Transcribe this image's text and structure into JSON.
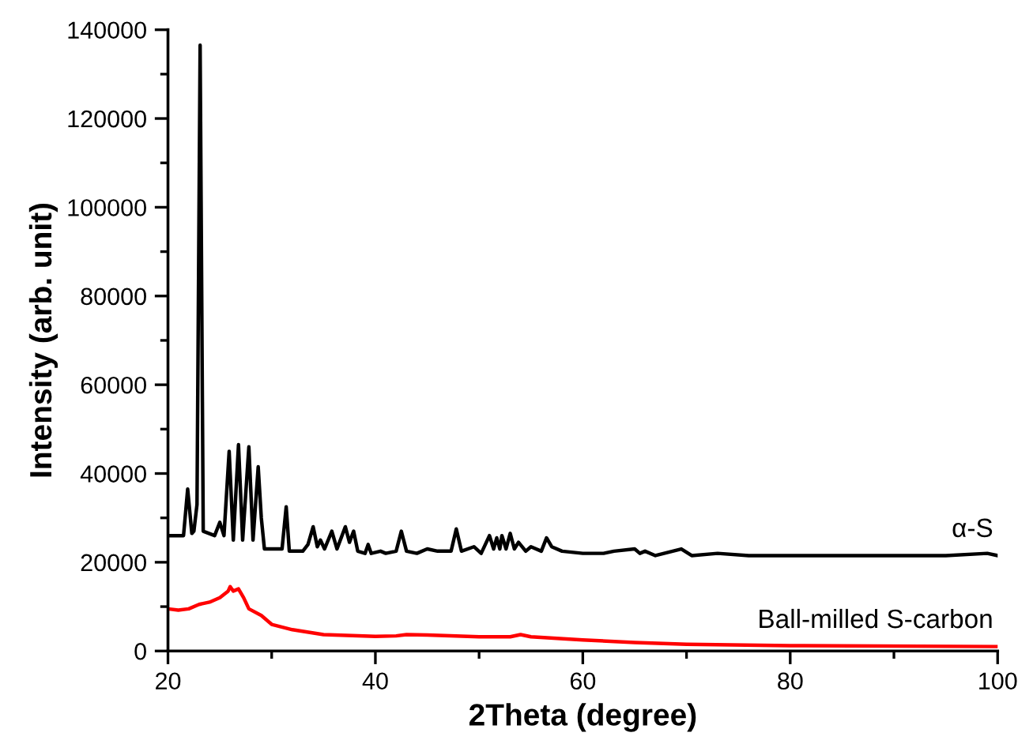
{
  "chart_data": {
    "type": "line",
    "xlabel": "2Theta (degree)",
    "ylabel": "Intensity (arb. unit)",
    "xlim": [
      20,
      100
    ],
    "xticks": [
      20,
      40,
      60,
      80,
      100
    ],
    "ylim": [
      0,
      140000
    ],
    "yticks": [
      0,
      20000,
      40000,
      60000,
      80000,
      100000,
      120000,
      140000
    ],
    "grid": false,
    "legend": false,
    "marker": "none",
    "line_style": "solid",
    "series": [
      {
        "name": "α-S",
        "color": "#000000",
        "x": [
          20,
          21.5,
          21.9,
          22.3,
          22.5,
          22.8,
          23.1,
          23.4,
          24.5,
          25,
          25.4,
          25.9,
          26.3,
          26.8,
          27.2,
          27.8,
          28.2,
          28.7,
          29.0,
          29.3,
          31.0,
          31.4,
          31.7,
          33,
          33.5,
          34.0,
          34.4,
          34.7,
          35.1,
          35.8,
          36.3,
          37.1,
          37.5,
          37.9,
          38.3,
          39.0,
          39.3,
          39.6,
          40.5,
          41,
          42,
          42.5,
          43,
          44,
          45,
          46,
          47.3,
          47.8,
          48.3,
          49.5,
          50.2,
          51,
          51.4,
          51.7,
          52,
          52.2,
          52.6,
          53,
          53.4,
          53.8,
          54.5,
          55,
          56,
          56.5,
          57,
          58,
          60,
          62,
          63,
          65,
          65.5,
          66,
          67,
          69.5,
          70.5,
          73,
          76,
          80,
          85,
          90,
          95,
          99,
          100
        ],
        "values": [
          26000,
          26000,
          36500,
          26500,
          27000,
          33000,
          136500,
          27000,
          26000,
          29000,
          26000,
          45000,
          25000,
          46500,
          25000,
          46000,
          25000,
          41500,
          30000,
          23000,
          23000,
          32500,
          22500,
          22500,
          24000,
          28000,
          23500,
          25000,
          23000,
          27000,
          23000,
          28000,
          24500,
          27000,
          22500,
          22000,
          24000,
          22000,
          22500,
          22000,
          22500,
          27000,
          22500,
          22000,
          23000,
          22500,
          22500,
          27500,
          22500,
          23500,
          22000,
          26000,
          23000,
          25500,
          23000,
          26000,
          23000,
          26500,
          23000,
          24500,
          22500,
          23500,
          22500,
          25500,
          23500,
          22500,
          22000,
          22000,
          22500,
          23000,
          22000,
          22500,
          21500,
          23000,
          21500,
          22000,
          21500,
          21500,
          21500,
          21500,
          21500,
          22000,
          21500
        ]
      },
      {
        "name": "Ball-milled S-carbon",
        "color": "#ff0000",
        "x": [
          20,
          21,
          22,
          23,
          24,
          25,
          25.8,
          26,
          26.3,
          26.8,
          27.3,
          27.8,
          29,
          30,
          32,
          35,
          40,
          42,
          43,
          45,
          50,
          53,
          54,
          55,
          60,
          65,
          70,
          80,
          100
        ],
        "values": [
          9500,
          9200,
          9500,
          10500,
          11000,
          12000,
          13500,
          14500,
          13500,
          14000,
          12000,
          9500,
          8000,
          6000,
          4800,
          3700,
          3300,
          3400,
          3700,
          3600,
          3200,
          3200,
          3700,
          3200,
          2500,
          1900,
          1500,
          1200,
          1000
        ]
      }
    ]
  }
}
